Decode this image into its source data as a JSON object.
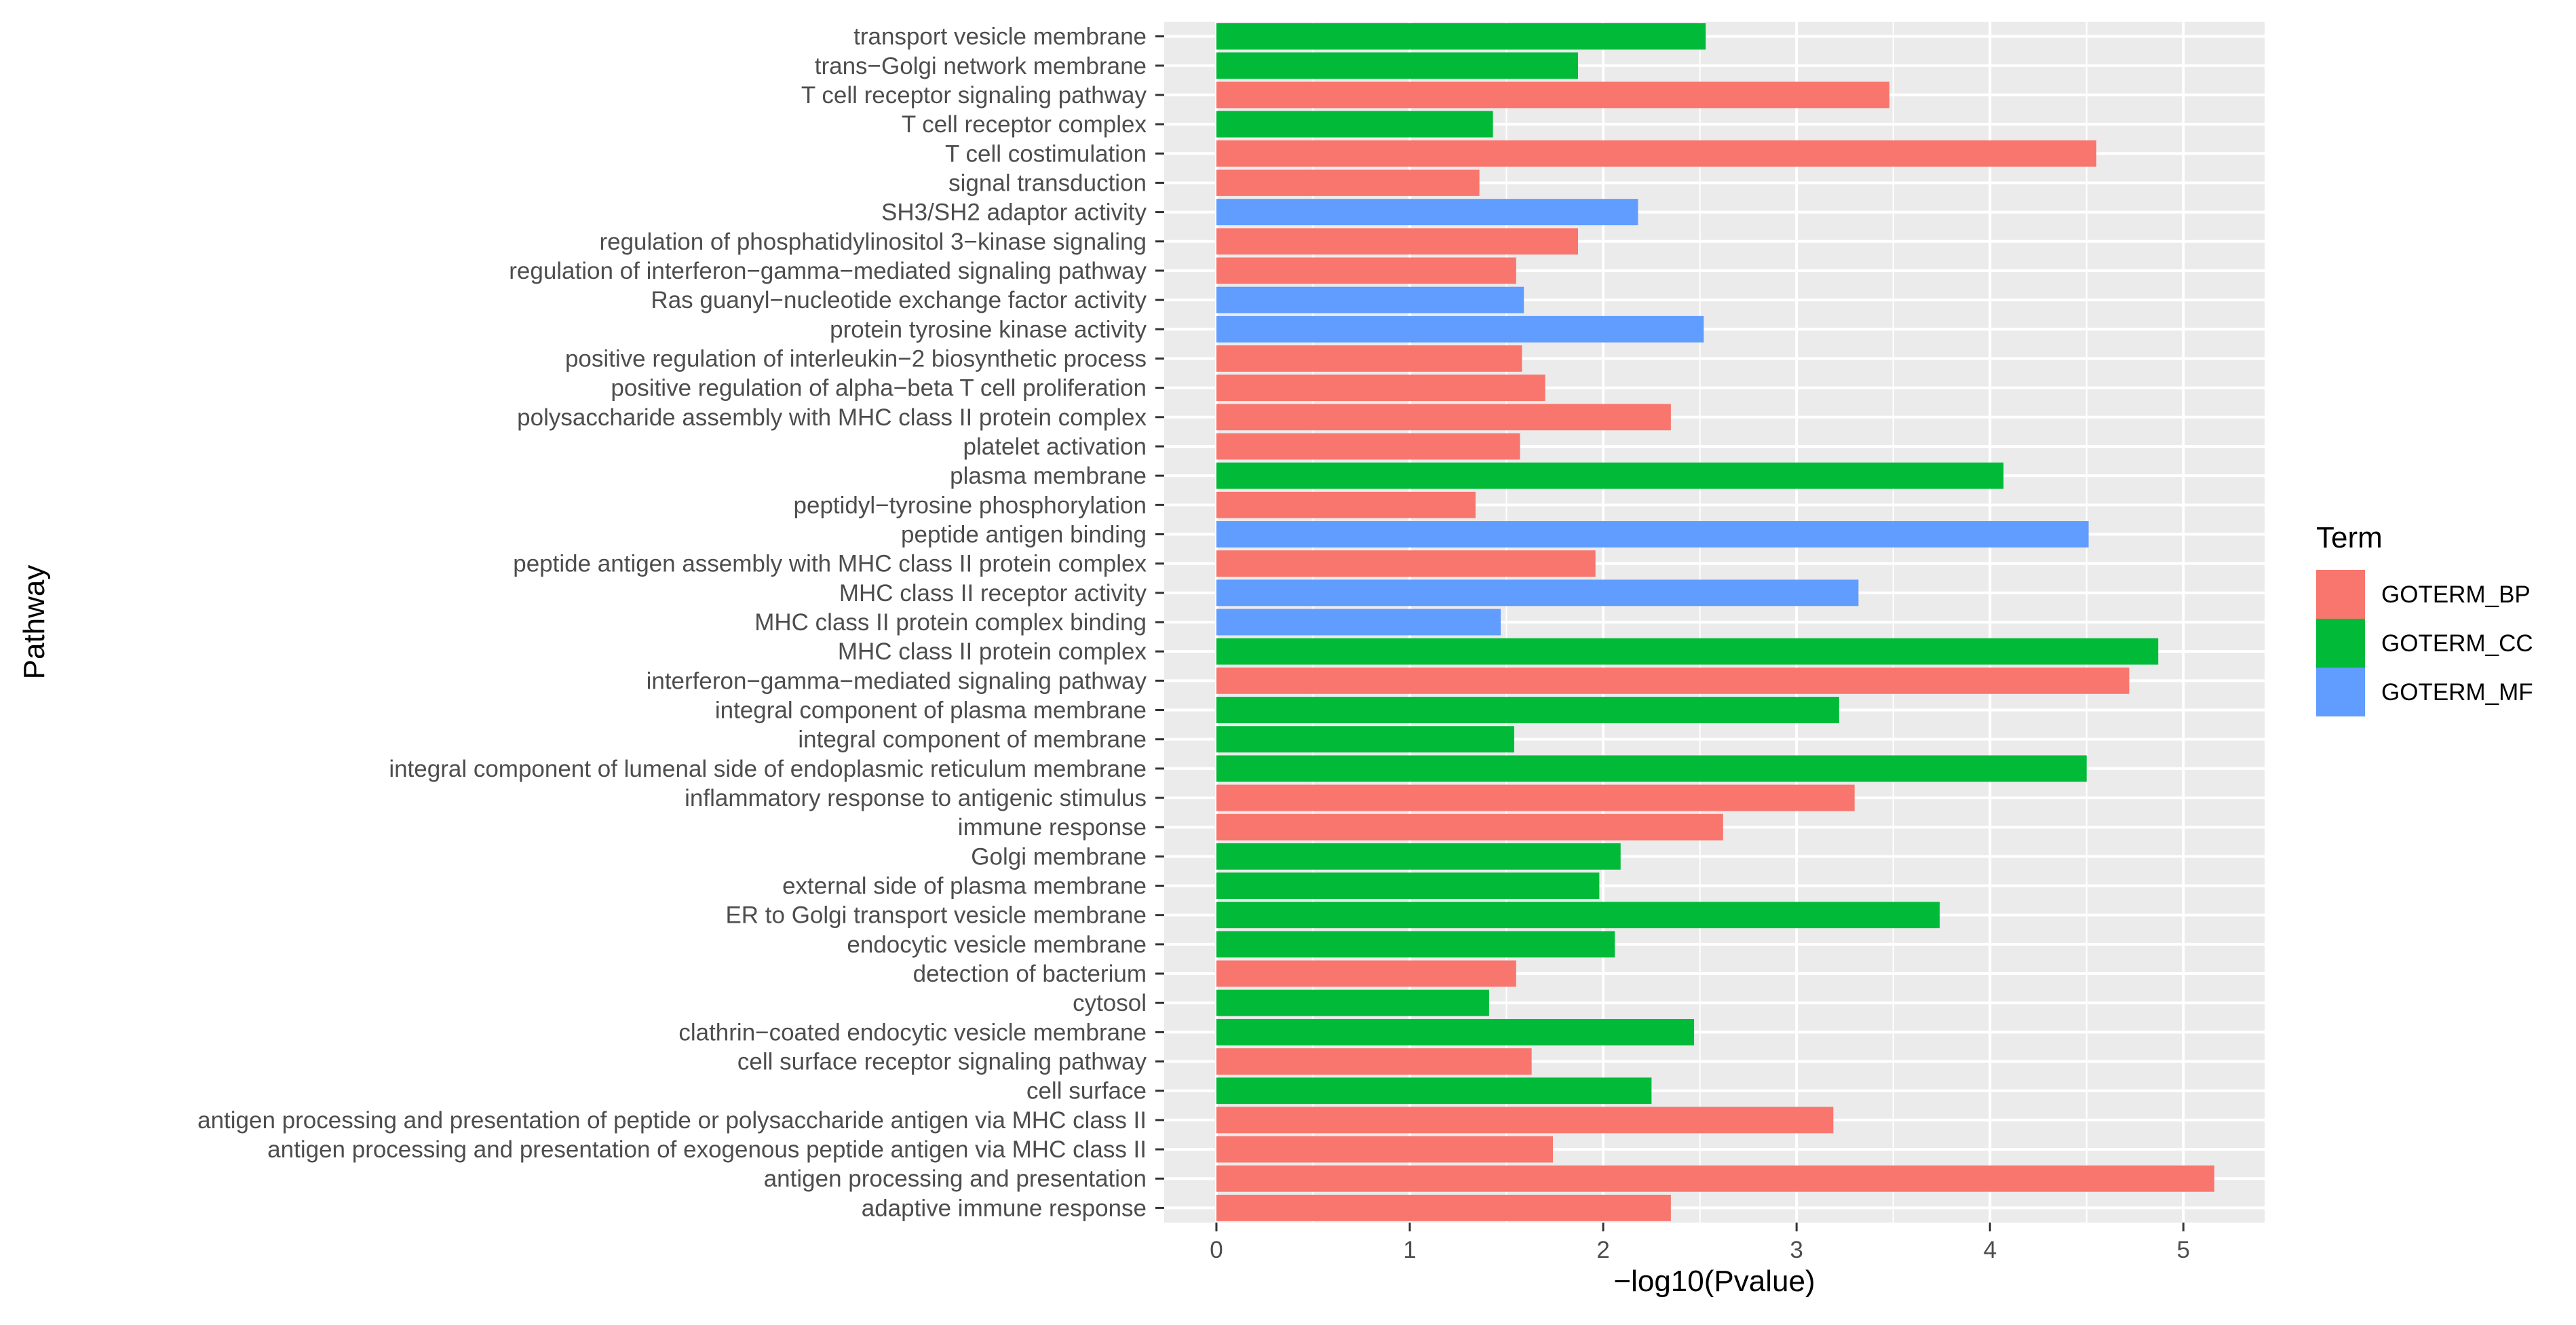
{
  "chart_data": {
    "type": "bar",
    "orientation": "horizontal",
    "xlabel": "−log10(Pvalue)",
    "ylabel": "Pathway",
    "xlim": [
      -0.27,
      5.42
    ],
    "xticks": [
      0,
      1,
      2,
      3,
      4,
      5
    ],
    "grid": true,
    "legend": {
      "title": "Term",
      "position": "right"
    },
    "colors": {
      "GOTERM_BP": "#F8766D",
      "GOTERM_CC": "#00BA38",
      "GOTERM_MF": "#619CFF"
    },
    "legend_entries": [
      "GOTERM_BP",
      "GOTERM_CC",
      "GOTERM_MF"
    ],
    "bars": [
      {
        "label": "transport vesicle membrane",
        "value": 2.53,
        "term": "GOTERM_CC"
      },
      {
        "label": "trans−Golgi network membrane",
        "value": 1.87,
        "term": "GOTERM_CC"
      },
      {
        "label": "T cell receptor signaling pathway",
        "value": 3.48,
        "term": "GOTERM_BP"
      },
      {
        "label": "T cell receptor complex",
        "value": 1.43,
        "term": "GOTERM_CC"
      },
      {
        "label": "T cell costimulation",
        "value": 4.55,
        "term": "GOTERM_BP"
      },
      {
        "label": "signal transduction",
        "value": 1.36,
        "term": "GOTERM_BP"
      },
      {
        "label": "SH3/SH2 adaptor activity",
        "value": 2.18,
        "term": "GOTERM_MF"
      },
      {
        "label": "regulation of phosphatidylinositol 3−kinase signaling",
        "value": 1.87,
        "term": "GOTERM_BP"
      },
      {
        "label": "regulation of interferon−gamma−mediated signaling pathway",
        "value": 1.55,
        "term": "GOTERM_BP"
      },
      {
        "label": "Ras guanyl−nucleotide exchange factor activity",
        "value": 1.59,
        "term": "GOTERM_MF"
      },
      {
        "label": "protein tyrosine kinase activity",
        "value": 2.52,
        "term": "GOTERM_MF"
      },
      {
        "label": "positive regulation of interleukin−2 biosynthetic process",
        "value": 1.58,
        "term": "GOTERM_BP"
      },
      {
        "label": "positive regulation of alpha−beta T cell proliferation",
        "value": 1.7,
        "term": "GOTERM_BP"
      },
      {
        "label": "polysaccharide assembly with MHC class II protein complex",
        "value": 2.35,
        "term": "GOTERM_BP"
      },
      {
        "label": "platelet activation",
        "value": 1.57,
        "term": "GOTERM_BP"
      },
      {
        "label": "plasma membrane",
        "value": 4.07,
        "term": "GOTERM_CC"
      },
      {
        "label": "peptidyl−tyrosine phosphorylation",
        "value": 1.34,
        "term": "GOTERM_BP"
      },
      {
        "label": "peptide antigen binding",
        "value": 4.51,
        "term": "GOTERM_MF"
      },
      {
        "label": "peptide antigen assembly with MHC class II protein complex",
        "value": 1.96,
        "term": "GOTERM_BP"
      },
      {
        "label": "MHC class II receptor activity",
        "value": 3.32,
        "term": "GOTERM_MF"
      },
      {
        "label": "MHC class II protein complex binding",
        "value": 1.47,
        "term": "GOTERM_MF"
      },
      {
        "label": "MHC class II protein complex",
        "value": 4.87,
        "term": "GOTERM_CC"
      },
      {
        "label": "interferon−gamma−mediated signaling pathway",
        "value": 4.72,
        "term": "GOTERM_BP"
      },
      {
        "label": "integral component of plasma membrane",
        "value": 3.22,
        "term": "GOTERM_CC"
      },
      {
        "label": "integral component of membrane",
        "value": 1.54,
        "term": "GOTERM_CC"
      },
      {
        "label": "integral component of lumenal side of endoplasmic reticulum membrane",
        "value": 4.5,
        "term": "GOTERM_CC"
      },
      {
        "label": "inflammatory response to antigenic stimulus",
        "value": 3.3,
        "term": "GOTERM_BP"
      },
      {
        "label": "immune response",
        "value": 2.62,
        "term": "GOTERM_BP"
      },
      {
        "label": "Golgi membrane",
        "value": 2.09,
        "term": "GOTERM_CC"
      },
      {
        "label": "external side of plasma membrane",
        "value": 1.98,
        "term": "GOTERM_CC"
      },
      {
        "label": "ER to Golgi transport vesicle membrane",
        "value": 3.74,
        "term": "GOTERM_CC"
      },
      {
        "label": "endocytic vesicle membrane",
        "value": 2.06,
        "term": "GOTERM_CC"
      },
      {
        "label": "detection of bacterium",
        "value": 1.55,
        "term": "GOTERM_BP"
      },
      {
        "label": "cytosol",
        "value": 1.41,
        "term": "GOTERM_CC"
      },
      {
        "label": "clathrin−coated endocytic vesicle membrane",
        "value": 2.47,
        "term": "GOTERM_CC"
      },
      {
        "label": "cell surface receptor signaling pathway",
        "value": 1.63,
        "term": "GOTERM_BP"
      },
      {
        "label": "cell surface",
        "value": 2.25,
        "term": "GOTERM_CC"
      },
      {
        "label": "antigen processing and presentation of peptide or polysaccharide antigen via MHC class II",
        "value": 3.19,
        "term": "GOTERM_BP"
      },
      {
        "label": "antigen processing and presentation of exogenous peptide antigen via MHC class II",
        "value": 1.74,
        "term": "GOTERM_BP"
      },
      {
        "label": "antigen processing and presentation",
        "value": 5.16,
        "term": "GOTERM_BP"
      },
      {
        "label": "adaptive immune response",
        "value": 2.35,
        "term": "GOTERM_BP"
      }
    ]
  }
}
